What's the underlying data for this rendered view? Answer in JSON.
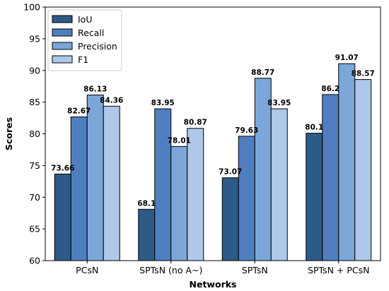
{
  "chart_data": {
    "type": "bar",
    "title": "",
    "xlabel": "Networks",
    "ylabel": "Scores",
    "ylim": [
      60,
      100
    ],
    "yticks": [
      60,
      65,
      70,
      75,
      80,
      85,
      90,
      95,
      100
    ],
    "categories": [
      "PCsN",
      "SPTsN (no A~)",
      "SPTsN",
      "SPTsN + PCsN"
    ],
    "series": [
      {
        "name": "IoU",
        "color": "#2e5a87",
        "values": [
          73.66,
          68.1,
          73.07,
          80.1
        ],
        "labels": [
          "73.66",
          "68.1",
          "73.07",
          "80.1"
        ]
      },
      {
        "name": "Recall",
        "color": "#4f7fc0",
        "values": [
          82.67,
          83.95,
          79.63,
          86.2
        ],
        "labels": [
          "82.67",
          "83.95",
          "79.63",
          "86.2"
        ]
      },
      {
        "name": "Precision",
        "color": "#7ca6d8",
        "values": [
          86.13,
          78.01,
          88.77,
          91.07
        ],
        "labels": [
          "86.13",
          "78.01",
          "88.77",
          "91.07"
        ]
      },
      {
        "name": "F1",
        "color": "#adc8e8",
        "values": [
          84.36,
          80.87,
          83.95,
          88.57
        ],
        "labels": [
          "84.36",
          "80.87",
          "83.95",
          "88.57"
        ]
      }
    ],
    "legend_position": "top-left",
    "grid": false
  }
}
